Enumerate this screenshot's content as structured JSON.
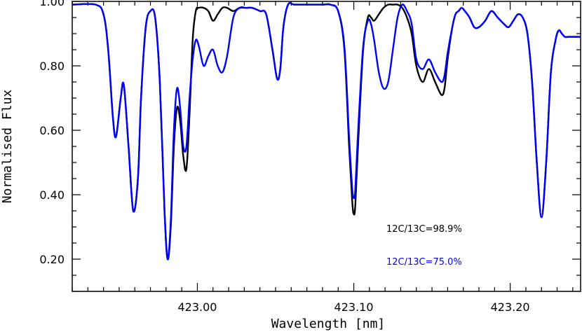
{
  "chart_data": {
    "type": "line",
    "title": "",
    "xlabel": "Wavelength [nm]",
    "ylabel": "Normalised Flux",
    "xlim": [
      422.92,
      423.245
    ],
    "ylim": [
      0.1,
      1.0
    ],
    "x_ticks": [
      423.0,
      423.1,
      423.2
    ],
    "x_tick_labels": [
      "423.00",
      "423.10",
      "423.20"
    ],
    "y_ticks": [
      0.2,
      0.4,
      0.6,
      0.8,
      1.0
    ],
    "y_tick_labels": [
      "0.20",
      "0.40",
      "0.60",
      "0.80",
      "1.00"
    ],
    "grid": false,
    "annotations": [
      {
        "text": "12C/13C=98.9%",
        "color": "#000000"
      },
      {
        "text": "12C/13C=75.0%",
        "color": "#0000ff"
      }
    ],
    "series": [
      {
        "color": "#000000",
        "x": [
          422.92,
          422.935,
          422.94,
          422.943,
          422.946,
          422.948,
          422.951,
          422.953,
          422.956,
          422.959,
          422.962,
          422.964,
          422.967,
          422.97,
          422.973,
          422.976,
          422.979,
          422.981,
          422.983,
          422.985,
          422.987,
          422.989,
          422.991,
          422.993,
          422.995,
          422.997,
          422.999,
          423.001,
          423.004,
          423.007,
          423.01,
          423.013,
          423.016,
          423.019,
          423.023,
          423.027,
          423.031,
          423.035,
          423.04,
          423.044,
          423.048,
          423.051,
          423.053,
          423.055,
          423.058,
          423.062,
          423.07,
          423.08,
          423.085,
          423.09,
          423.094,
          423.097,
          423.099,
          423.1,
          423.101,
          423.103,
          423.106,
          423.109,
          423.111,
          423.113,
          423.116,
          423.119,
          423.122,
          423.125,
          423.128,
          423.131,
          423.134,
          423.137,
          423.14,
          423.144,
          423.148,
          423.152,
          423.156,
          423.158,
          423.16,
          423.163,
          423.165,
          423.167,
          423.169,
          423.171,
          423.174,
          423.177,
          423.18,
          423.184,
          423.188,
          423.192,
          423.196,
          423.199,
          423.202,
          423.205,
          423.208,
          423.211,
          423.214,
          423.217,
          423.22,
          423.223,
          423.226,
          423.229,
          423.231,
          423.233,
          423.235,
          423.237,
          423.239,
          423.241,
          423.243,
          423.245
        ],
        "y": [
          0.99,
          0.99,
          0.96,
          0.85,
          0.64,
          0.58,
          0.7,
          0.74,
          0.55,
          0.35,
          0.45,
          0.7,
          0.92,
          0.97,
          0.95,
          0.75,
          0.35,
          0.2,
          0.3,
          0.55,
          0.67,
          0.63,
          0.52,
          0.48,
          0.65,
          0.88,
          0.97,
          0.98,
          0.98,
          0.97,
          0.94,
          0.96,
          0.98,
          0.98,
          0.97,
          0.98,
          0.98,
          0.98,
          0.97,
          0.96,
          0.85,
          0.76,
          0.79,
          0.92,
          0.99,
          0.99,
          0.99,
          0.99,
          0.99,
          0.97,
          0.85,
          0.55,
          0.38,
          0.34,
          0.37,
          0.58,
          0.85,
          0.95,
          0.95,
          0.94,
          0.96,
          0.98,
          0.99,
          0.99,
          0.99,
          0.98,
          0.95,
          0.9,
          0.8,
          0.75,
          0.79,
          0.75,
          0.71,
          0.73,
          0.82,
          0.92,
          0.96,
          0.97,
          0.98,
          0.97,
          0.95,
          0.92,
          0.92,
          0.94,
          0.97,
          0.95,
          0.93,
          0.92,
          0.94,
          0.96,
          0.95,
          0.9,
          0.75,
          0.5,
          0.33,
          0.5,
          0.78,
          0.88,
          0.91,
          0.9,
          0.89,
          0.89,
          0.89,
          0.89,
          0.89,
          0.89
        ]
      },
      {
        "color": "#0000ff",
        "x": [
          422.92,
          422.935,
          422.94,
          422.943,
          422.946,
          422.948,
          422.951,
          422.953,
          422.956,
          422.959,
          422.962,
          422.964,
          422.967,
          422.97,
          422.973,
          422.976,
          422.979,
          422.981,
          422.983,
          422.985,
          422.987,
          422.989,
          422.991,
          422.993,
          422.995,
          422.997,
          422.999,
          423.001,
          423.004,
          423.007,
          423.01,
          423.013,
          423.016,
          423.019,
          423.023,
          423.027,
          423.031,
          423.035,
          423.04,
          423.044,
          423.048,
          423.051,
          423.053,
          423.055,
          423.058,
          423.062,
          423.07,
          423.08,
          423.085,
          423.09,
          423.094,
          423.097,
          423.099,
          423.1,
          423.101,
          423.103,
          423.106,
          423.109,
          423.111,
          423.113,
          423.116,
          423.119,
          423.122,
          423.125,
          423.128,
          423.131,
          423.134,
          423.137,
          423.14,
          423.144,
          423.148,
          423.152,
          423.156,
          423.158,
          423.16,
          423.163,
          423.165,
          423.167,
          423.169,
          423.171,
          423.174,
          423.177,
          423.18,
          423.184,
          423.188,
          423.192,
          423.196,
          423.199,
          423.202,
          423.205,
          423.208,
          423.211,
          423.214,
          423.217,
          423.22,
          423.223,
          423.226,
          423.229,
          423.231,
          423.233,
          423.235,
          423.237,
          423.239,
          423.241,
          423.243,
          423.245
        ],
        "y": [
          0.99,
          0.99,
          0.96,
          0.85,
          0.64,
          0.58,
          0.7,
          0.74,
          0.55,
          0.35,
          0.45,
          0.7,
          0.92,
          0.97,
          0.95,
          0.75,
          0.35,
          0.2,
          0.32,
          0.6,
          0.73,
          0.67,
          0.55,
          0.55,
          0.7,
          0.82,
          0.88,
          0.86,
          0.8,
          0.83,
          0.85,
          0.8,
          0.78,
          0.83,
          0.95,
          0.98,
          0.98,
          0.98,
          0.97,
          0.96,
          0.85,
          0.76,
          0.79,
          0.92,
          0.99,
          0.99,
          0.99,
          0.99,
          0.99,
          0.97,
          0.86,
          0.58,
          0.42,
          0.39,
          0.42,
          0.62,
          0.86,
          0.94,
          0.93,
          0.88,
          0.78,
          0.73,
          0.75,
          0.85,
          0.95,
          0.99,
          0.97,
          0.93,
          0.82,
          0.79,
          0.82,
          0.78,
          0.75,
          0.77,
          0.84,
          0.92,
          0.96,
          0.97,
          0.98,
          0.97,
          0.95,
          0.92,
          0.92,
          0.94,
          0.97,
          0.95,
          0.93,
          0.92,
          0.94,
          0.96,
          0.95,
          0.9,
          0.75,
          0.5,
          0.33,
          0.5,
          0.78,
          0.88,
          0.91,
          0.9,
          0.89,
          0.89,
          0.89,
          0.89,
          0.89,
          0.89
        ]
      }
    ]
  }
}
